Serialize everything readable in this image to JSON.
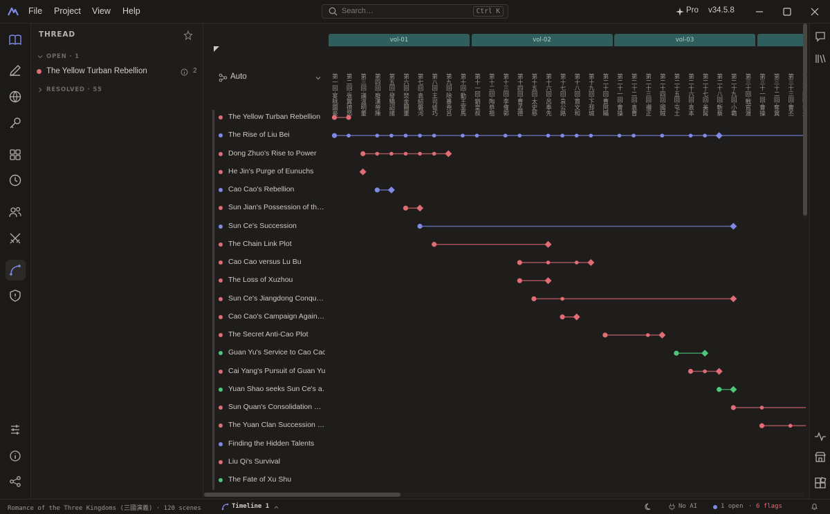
{
  "app": {
    "menu": [
      "File",
      "Project",
      "View",
      "Help"
    ],
    "search_placeholder": "Search…",
    "search_shortcut": "Ctrl K",
    "plan": "Pro",
    "version": "v34.5.8"
  },
  "sidebar": {
    "title": "THREAD",
    "open_group": "OPEN · 1",
    "open_item": "The Yellow Turban Rebellion",
    "open_item_count": "2",
    "resolved_group": "RESOLVED · 55"
  },
  "timeline": {
    "layout_mode": "Auto",
    "volumes": [
      "vol-01",
      "vol-02",
      "vol-03"
    ],
    "chapter_headers": [
      "第一回·宴桃園豪",
      "第二回·張翼德怒",
      "第三回·議溫明董",
      "第四回·廢漢帝陳",
      "第五回·發矯詔諸",
      "第六回·焚金闕董",
      "第七回·袁紹磐河",
      "第八回·王司徒巧",
      "第九回·除暴兇呂",
      "第十回·勤王室馬",
      "第十一回·劉皇叔",
      "第十二回·陶恭祖",
      "第十三回·李傕郭",
      "第十四回·曹孟德",
      "第十五回·太史慈",
      "第十六回·呂奉先",
      "第十七回·袁公路",
      "第十八回·賈文和",
      "第十九回·下邳城",
      "第二十回·曹阿瞞",
      "第二十一回·曹操",
      "第二十二回·袁曹",
      "第二十三回·禰正",
      "第二十四回·國賊",
      "第二十五回·屯土",
      "第二十六回·袁本",
      "第二十七回·美髯",
      "第二十八回·斬蔡",
      "第二十九回·小霸",
      "第三十回·戰官渡",
      "第三十一回·曹操",
      "第三十二回·奪冀",
      "第三十三回·曹丕",
      "第三十四回·蔡夫"
    ],
    "threads": [
      {
        "name": "The Yellow Turban Rebellion",
        "color": "#e06c75"
      },
      {
        "name": "The Rise of Liu Bei",
        "color": "#7f89e6"
      },
      {
        "name": "Dong Zhuo's Rise to Power",
        "color": "#e06c75"
      },
      {
        "name": "He Jin's Purge of Eunuchs",
        "color": "#e06c75"
      },
      {
        "name": "Cao Cao's Rebellion",
        "color": "#7f89e6"
      },
      {
        "name": "Sun Jian's Possession of th…",
        "color": "#e06c75"
      },
      {
        "name": "Sun Ce's Succession",
        "color": "#7f89e6"
      },
      {
        "name": "The Chain Link Plot",
        "color": "#e06c75"
      },
      {
        "name": "Cao Cao versus Lu Bu",
        "color": "#e06c75"
      },
      {
        "name": "The Loss of Xuzhou",
        "color": "#e06c75"
      },
      {
        "name": "Sun Ce's Jiangdong Conqu…",
        "color": "#e06c75"
      },
      {
        "name": "Cao Cao's Campaign Again…",
        "color": "#e06c75"
      },
      {
        "name": "The Secret Anti-Cao Plot",
        "color": "#e06c75"
      },
      {
        "name": "Guan Yu's Service to Cao Cao",
        "color": "#4fc77a"
      },
      {
        "name": "Cai Yang's Pursuit of Guan Yu",
        "color": "#e06c75"
      },
      {
        "name": "Yuan Shao seeks Sun Ce's a…",
        "color": "#4fc77a"
      },
      {
        "name": "Sun Quan's Consolidation …",
        "color": "#e06c75"
      },
      {
        "name": "The Yuan Clan Succession …",
        "color": "#e06c75"
      },
      {
        "name": "Finding the Hidden Talents",
        "color": "#7f89e6"
      },
      {
        "name": "Liu Qi's Survival",
        "color": "#e06c75"
      },
      {
        "name": "The Fate of Xu Shu",
        "color": "#4fc77a"
      }
    ],
    "events": [
      {
        "dots": [
          1,
          2
        ],
        "end": null
      },
      {
        "dots": [
          1,
          2,
          4,
          5,
          6,
          7,
          8,
          10,
          11,
          13,
          14,
          16,
          17,
          18,
          19,
          21,
          22,
          24,
          26,
          27
        ],
        "end": 28,
        "extends": true
      },
      {
        "dots": [
          3,
          4,
          5,
          6,
          7,
          8
        ],
        "end": 9
      },
      {
        "dots": [],
        "end": 3
      },
      {
        "dots": [
          4
        ],
        "end": 5
      },
      {
        "dots": [
          6
        ],
        "end": 7
      },
      {
        "dots": [
          7
        ],
        "end": 29
      },
      {
        "dots": [
          8
        ],
        "end": 16
      },
      {
        "dots": [
          14,
          16,
          18
        ],
        "end": 19
      },
      {
        "dots": [
          14
        ],
        "end": 16
      },
      {
        "dots": [
          15,
          17
        ],
        "end": 29
      },
      {
        "dots": [
          17
        ],
        "end": 18
      },
      {
        "dots": [
          20,
          23
        ],
        "end": 24
      },
      {
        "dots": [
          25
        ],
        "end": 27
      },
      {
        "dots": [
          26,
          27
        ],
        "end": 28
      },
      {
        "dots": [
          28
        ],
        "end": 29
      },
      {
        "dots": [
          29,
          31
        ],
        "end": null,
        "extends": true
      },
      {
        "dots": [
          31,
          33
        ],
        "end": null,
        "extends": true
      },
      {
        "dots": [],
        "end": null
      },
      {
        "dots": [],
        "end": null
      },
      {
        "dots": [],
        "end": null
      }
    ]
  },
  "status": {
    "project": "Romance of the Three Kingdoms (三國演義) · 120 scenes",
    "view": "Timeline 1",
    "ai": "No AI",
    "open": "1 open",
    "flags": "6 flags"
  }
}
